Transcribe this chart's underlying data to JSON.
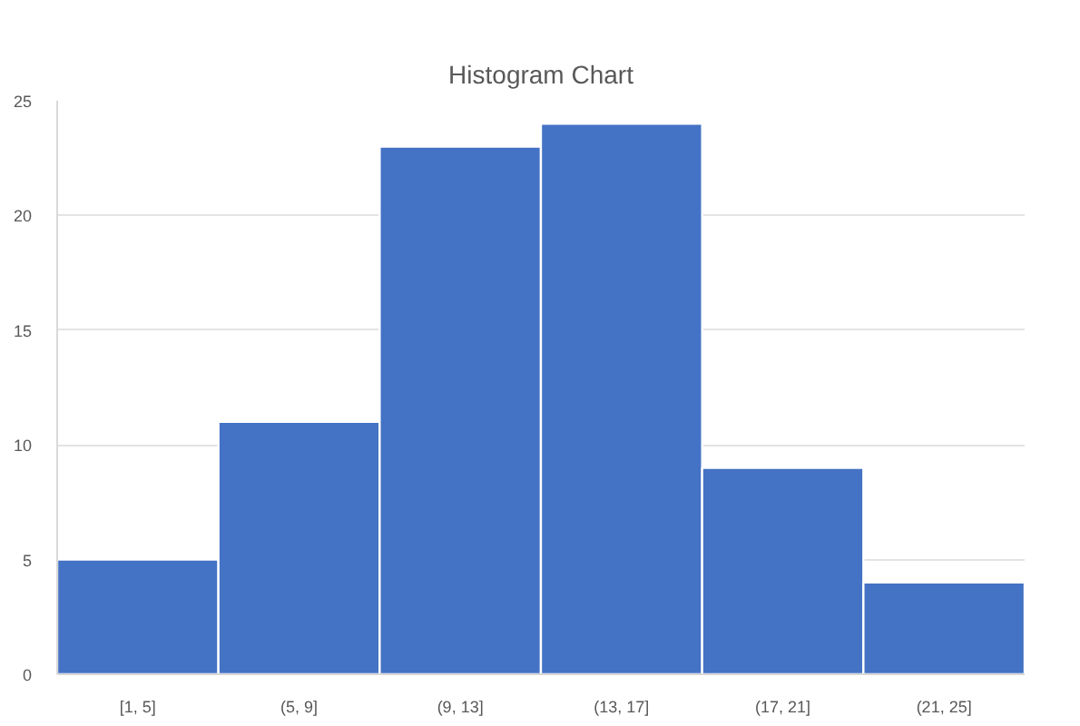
{
  "chart_data": {
    "type": "bar",
    "title": "Histogram Chart",
    "categories": [
      "[1, 5]",
      "(5, 9]",
      "(9, 13]",
      "(13, 17]",
      "(17, 21]",
      "(21, 25]"
    ],
    "values": [
      5,
      11,
      23,
      24,
      9,
      4
    ],
    "color": "#4472c4",
    "ylim": [
      0,
      25
    ],
    "yticks": [
      0,
      5,
      10,
      15,
      20,
      25
    ],
    "grid": "y"
  }
}
